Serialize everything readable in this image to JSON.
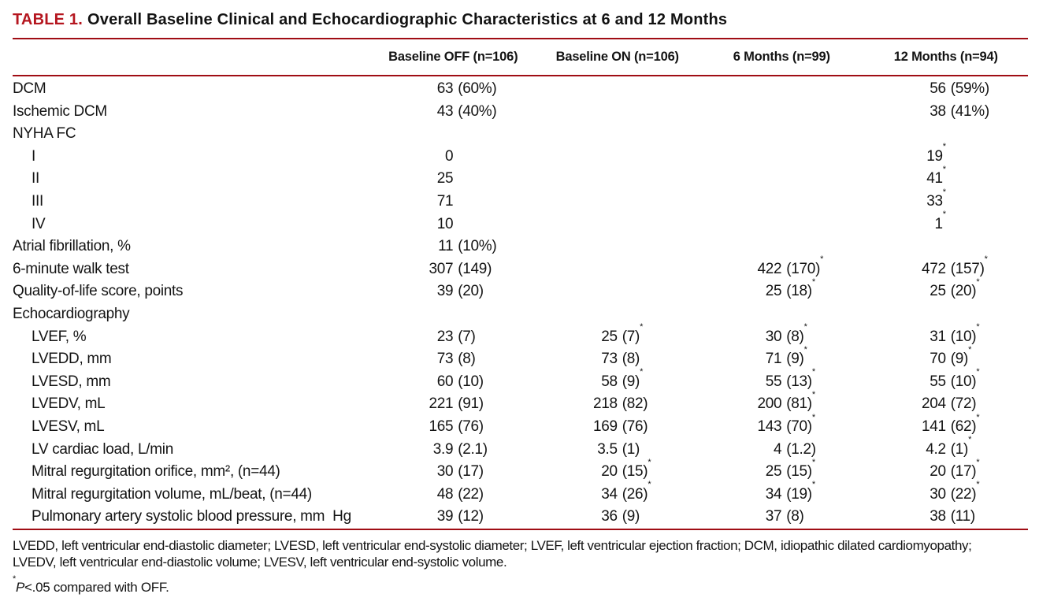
{
  "title": {
    "label": "TABLE 1.",
    "text": "Overall Baseline Clinical and Echocardiographic Characteristics at 6 and 12 Months"
  },
  "colors": {
    "accent_red": "#b5161f",
    "rule_red": "#a00d14"
  },
  "table": {
    "columns": [
      "Baseline OFF (n=106)",
      "Baseline ON (n=106)",
      "6 Months (n=99)",
      "12 Months (n=94)"
    ],
    "rows": [
      {
        "label": "DCM",
        "indent": 0,
        "values": [
          "63 (60%)",
          "",
          "",
          "56 (59%)"
        ]
      },
      {
        "label": "Ischemic DCM",
        "indent": 0,
        "values": [
          "43 (40%)",
          "",
          "",
          "38 (41%)"
        ]
      },
      {
        "label": "NYHA FC",
        "indent": 0,
        "values": [
          "",
          "",
          "",
          ""
        ]
      },
      {
        "label": "I",
        "indent": 1,
        "values": [
          "0",
          "",
          "",
          "19*"
        ]
      },
      {
        "label": "II",
        "indent": 1,
        "values": [
          "25",
          "",
          "",
          "41*"
        ]
      },
      {
        "label": "III",
        "indent": 1,
        "values": [
          "71",
          "",
          "",
          "33*"
        ]
      },
      {
        "label": "IV",
        "indent": 1,
        "values": [
          "10",
          "",
          "",
          "1*"
        ]
      },
      {
        "label": "Atrial fibrillation, %",
        "indent": 0,
        "values": [
          "11 (10%)",
          "",
          "",
          ""
        ]
      },
      {
        "label": "6-minute walk test",
        "indent": 0,
        "values": [
          "307 (149)",
          "",
          "422 (170)*",
          "472 (157)*"
        ]
      },
      {
        "label": "Quality-of-life score, points",
        "indent": 0,
        "values": [
          "39 (20)",
          "",
          "25 (18)*",
          "25 (20)*"
        ]
      },
      {
        "label": "Echocardiography",
        "indent": 0,
        "values": [
          "",
          "",
          "",
          ""
        ]
      },
      {
        "label": "LVEF, %",
        "indent": 1,
        "values": [
          "23 (7)",
          "25 (7)*",
          "30 (8)*",
          "31 (10)*"
        ]
      },
      {
        "label": "LVEDD, mm",
        "indent": 1,
        "values": [
          "73 (8)",
          "73 (8)",
          "71 (9)*",
          "70 (9)*"
        ]
      },
      {
        "label": "LVESD, mm",
        "indent": 1,
        "values": [
          "60 (10)",
          "58 (9)*",
          "55 (13)*",
          "55 (10)*"
        ]
      },
      {
        "label": "LVEDV, mL",
        "indent": 1,
        "values": [
          "221 (91)",
          "218 (82)",
          "200 (81)*",
          "204 (72)"
        ]
      },
      {
        "label": "LVESV, mL",
        "indent": 1,
        "values": [
          "165 (76)",
          "169 (76)",
          "143 (70)*",
          "141 (62)*"
        ]
      },
      {
        "label": "LV cardiac load, L/min",
        "indent": 1,
        "values": [
          "3.9 (2.1)",
          "3.5 (1)",
          "4 (1.2)",
          "4.2 (1)*"
        ]
      },
      {
        "label": "Mitral regurgitation orifice, mm², (n=44)",
        "indent": 1,
        "values": [
          "30 (17)",
          "20 (15)*",
          "25 (15)*",
          "20 (17)*"
        ]
      },
      {
        "label": "Mitral regurgitation volume, mL/beat, (n=44)",
        "indent": 1,
        "values": [
          "48 (22)",
          "34 (26)*",
          "34 (19)*",
          "30 (22)*"
        ]
      },
      {
        "label": "Pulmonary artery systolic blood pressure, mm  Hg",
        "indent": 1,
        "values": [
          "39 (12)",
          "36 (9)",
          "37 (8)",
          "38 (11)"
        ]
      }
    ]
  },
  "footnotes": {
    "abbreviation_lines": [
      "LVEDD, left ventricular end-diastolic diameter; LVESD, left ventricular end-systolic diameter; LVEF, left ventricular ejection fraction; DCM, idiopathic dilated cardiomyopathy;",
      "LVEDV, left ventricular end-diastolic volume; LVESV, left ventricular end-systolic volume."
    ],
    "significance": {
      "marker": "*",
      "stat": "P",
      "text": "<.05 compared with OFF."
    }
  }
}
